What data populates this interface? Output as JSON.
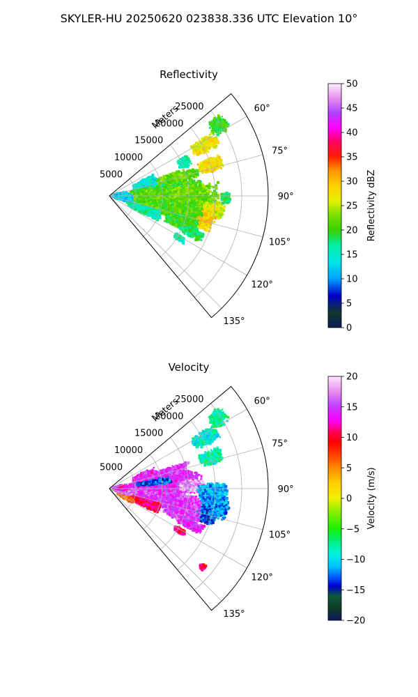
{
  "figure": {
    "title": "SKYLER-HU  20250620  023838.336 UTC Elevation 10°"
  },
  "chart_data": [
    {
      "type": "heatmap",
      "subtype": "polar-sector (PPI)",
      "title": "Reflectivity",
      "range_label": "Meters",
      "range_ticks": [
        5000,
        10000,
        15000,
        20000,
        25000
      ],
      "range_tick_labels": [
        "5000",
        "10000",
        "15000",
        "20000",
        "25000"
      ],
      "rmax": 30000,
      "azimuth_range": [
        50,
        140
      ],
      "azimuth_ticks": [
        60,
        75,
        90,
        105,
        120,
        135
      ],
      "azimuth_tick_labels": [
        "60°",
        "75°",
        "90°",
        "105°",
        "120°",
        "135°"
      ],
      "grid": true,
      "colorbar": {
        "label": "Reflectivity dBZ",
        "range": [
          0,
          50
        ],
        "ticks": [
          0,
          5,
          10,
          15,
          20,
          25,
          30,
          35,
          40,
          45,
          50
        ],
        "tick_labels": [
          "0",
          "5",
          "10",
          "15",
          "20",
          "25",
          "30",
          "35",
          "40",
          "45",
          "50"
        ],
        "stops": [
          [
            0.0,
            "#0a1a5a"
          ],
          [
            0.06,
            "#103a2a"
          ],
          [
            0.13,
            "#0000c8"
          ],
          [
            0.2,
            "#00a0ff"
          ],
          [
            0.27,
            "#00e6e6"
          ],
          [
            0.34,
            "#00f0a0"
          ],
          [
            0.4,
            "#3ad000"
          ],
          [
            0.46,
            "#7ae000"
          ],
          [
            0.52,
            "#e6f000"
          ],
          [
            0.58,
            "#ffd200"
          ],
          [
            0.64,
            "#ff9a00"
          ],
          [
            0.7,
            "#ff2000"
          ],
          [
            0.76,
            "#ff0060"
          ],
          [
            0.82,
            "#ff00ff"
          ],
          [
            0.88,
            "#b040ff"
          ],
          [
            0.94,
            "#e890ee"
          ],
          [
            1.0,
            "#fff0ff"
          ]
        ]
      },
      "cells": [
        {
          "az": 62,
          "r": 20500,
          "w": 4,
          "dr": 2800,
          "v": 27
        },
        {
          "az": 57,
          "r": 24500,
          "w": 4,
          "dr": 1800,
          "v": 20
        },
        {
          "az": 73,
          "r": 20000,
          "w": 4,
          "dr": 2500,
          "v": 28
        },
        {
          "az": 75,
          "r": 16000,
          "w": 3,
          "dr": 1500,
          "v": 21
        },
        {
          "az": 66,
          "r": 15500,
          "w": 4,
          "dr": 1200,
          "v": 16
        },
        {
          "az": 78,
          "r": 11000,
          "w": 8,
          "dr": 5000,
          "v": 22
        },
        {
          "az": 72,
          "r": 7000,
          "w": 8,
          "dr": 2500,
          "v": 14
        },
        {
          "az": 86,
          "r": 10500,
          "w": 8,
          "dr": 7500,
          "v": 20
        },
        {
          "az": 92,
          "r": 12000,
          "w": 10,
          "dr": 9000,
          "v": 22
        },
        {
          "az": 98,
          "r": 19500,
          "w": 5,
          "dr": 2500,
          "v": 26
        },
        {
          "az": 104,
          "r": 17500,
          "w": 6,
          "dr": 3000,
          "v": 29
        },
        {
          "az": 102,
          "r": 11000,
          "w": 8,
          "dr": 7000,
          "v": 21
        },
        {
          "az": 110,
          "r": 14500,
          "w": 5,
          "dr": 3500,
          "v": 20
        },
        {
          "az": 114,
          "r": 17000,
          "w": 3,
          "dr": 2500,
          "v": 18
        },
        {
          "az": 112,
          "r": 7000,
          "w": 6,
          "dr": 3500,
          "v": 16
        },
        {
          "az": 121,
          "r": 15500,
          "w": 2,
          "dr": 1200,
          "v": 16
        },
        {
          "az": 97,
          "r": 2500,
          "w": 12,
          "dr": 2000,
          "v": 13
        },
        {
          "az": 84,
          "r": 2000,
          "w": 10,
          "dr": 1500,
          "v": 12
        },
        {
          "az": 91,
          "r": 22000,
          "w": 3,
          "dr": 900,
          "v": 18
        }
      ]
    },
    {
      "type": "heatmap",
      "subtype": "polar-sector (PPI)",
      "title": "Velocity",
      "range_label": "Meters",
      "range_ticks": [
        5000,
        10000,
        15000,
        20000,
        25000
      ],
      "range_tick_labels": [
        "5000",
        "10000",
        "15000",
        "20000",
        "25000"
      ],
      "rmax": 30000,
      "azimuth_range": [
        50,
        140
      ],
      "azimuth_ticks": [
        60,
        75,
        90,
        105,
        120,
        135
      ],
      "azimuth_tick_labels": [
        "60°",
        "75°",
        "90°",
        "105°",
        "120°",
        "135°"
      ],
      "grid": true,
      "colorbar": {
        "label": "Velocity (m/s)",
        "range": [
          -20,
          20
        ],
        "ticks": [
          -20,
          -15,
          -10,
          -5,
          0,
          5,
          10,
          15,
          20
        ],
        "tick_labels": [
          "−20",
          "−15",
          "−10",
          "−5",
          "0",
          "5",
          "10",
          "15",
          "20"
        ],
        "stops": [
          [
            0.0,
            "#0a1a5a"
          ],
          [
            0.05,
            "#103a2a"
          ],
          [
            0.1,
            "#0a5a3a"
          ],
          [
            0.14,
            "#0000c8"
          ],
          [
            0.18,
            "#0060ff"
          ],
          [
            0.22,
            "#00c0ff"
          ],
          [
            0.27,
            "#00f0e0"
          ],
          [
            0.33,
            "#00f070"
          ],
          [
            0.38,
            "#20f000"
          ],
          [
            0.44,
            "#80f000"
          ],
          [
            0.5,
            "#f0f000"
          ],
          [
            0.56,
            "#ffd000"
          ],
          [
            0.62,
            "#ff9000"
          ],
          [
            0.68,
            "#ff4000"
          ],
          [
            0.73,
            "#ff0000"
          ],
          [
            0.77,
            "#ff0050"
          ],
          [
            0.82,
            "#ff00ff"
          ],
          [
            0.88,
            "#c040ff"
          ],
          [
            0.94,
            "#e890ee"
          ],
          [
            1.0,
            "#ffe8ff"
          ]
        ]
      },
      "cells": [
        {
          "az": 62,
          "r": 20500,
          "w": 4,
          "dr": 2800,
          "v": -9
        },
        {
          "az": 57,
          "r": 24500,
          "w": 4,
          "dr": 1800,
          "v": -8
        },
        {
          "az": 73,
          "r": 20000,
          "w": 4,
          "dr": 2500,
          "v": -8
        },
        {
          "az": 78,
          "r": 11000,
          "w": 8,
          "dr": 5000,
          "v": 15
        },
        {
          "az": 72,
          "r": 7000,
          "w": 8,
          "dr": 2500,
          "v": 14
        },
        {
          "az": 86,
          "r": 10500,
          "w": 8,
          "dr": 7500,
          "v": 14
        },
        {
          "az": 88,
          "r": 15500,
          "w": 4,
          "dr": 2500,
          "v": 18
        },
        {
          "az": 92,
          "r": 19500,
          "w": 5,
          "dr": 3000,
          "v": -11
        },
        {
          "az": 100,
          "r": 20000,
          "w": 6,
          "dr": 3000,
          "v": -12
        },
        {
          "az": 106,
          "r": 19000,
          "w": 4,
          "dr": 2000,
          "v": -13
        },
        {
          "az": 102,
          "r": 11000,
          "w": 8,
          "dr": 7000,
          "v": 15
        },
        {
          "az": 110,
          "r": 14500,
          "w": 5,
          "dr": 3500,
          "v": 15
        },
        {
          "az": 114,
          "r": 17000,
          "w": 3,
          "dr": 2500,
          "v": 14
        },
        {
          "az": 112,
          "r": 7000,
          "w": 6,
          "dr": 3500,
          "v": 11
        },
        {
          "az": 118,
          "r": 3500,
          "w": 5,
          "dr": 2000,
          "v": 6
        },
        {
          "az": 121,
          "r": 15500,
          "w": 2,
          "dr": 1200,
          "v": 11
        },
        {
          "az": 97,
          "r": 2500,
          "w": 12,
          "dr": 2000,
          "v": 16
        },
        {
          "az": 84,
          "r": 2000,
          "w": 10,
          "dr": 1500,
          "v": 13
        },
        {
          "az": 82,
          "r": 8500,
          "w": 3,
          "dr": 3500,
          "v": -13
        },
        {
          "az": 130,
          "r": 23000,
          "w": 1.5,
          "dr": 600,
          "v": 11
        }
      ]
    }
  ]
}
